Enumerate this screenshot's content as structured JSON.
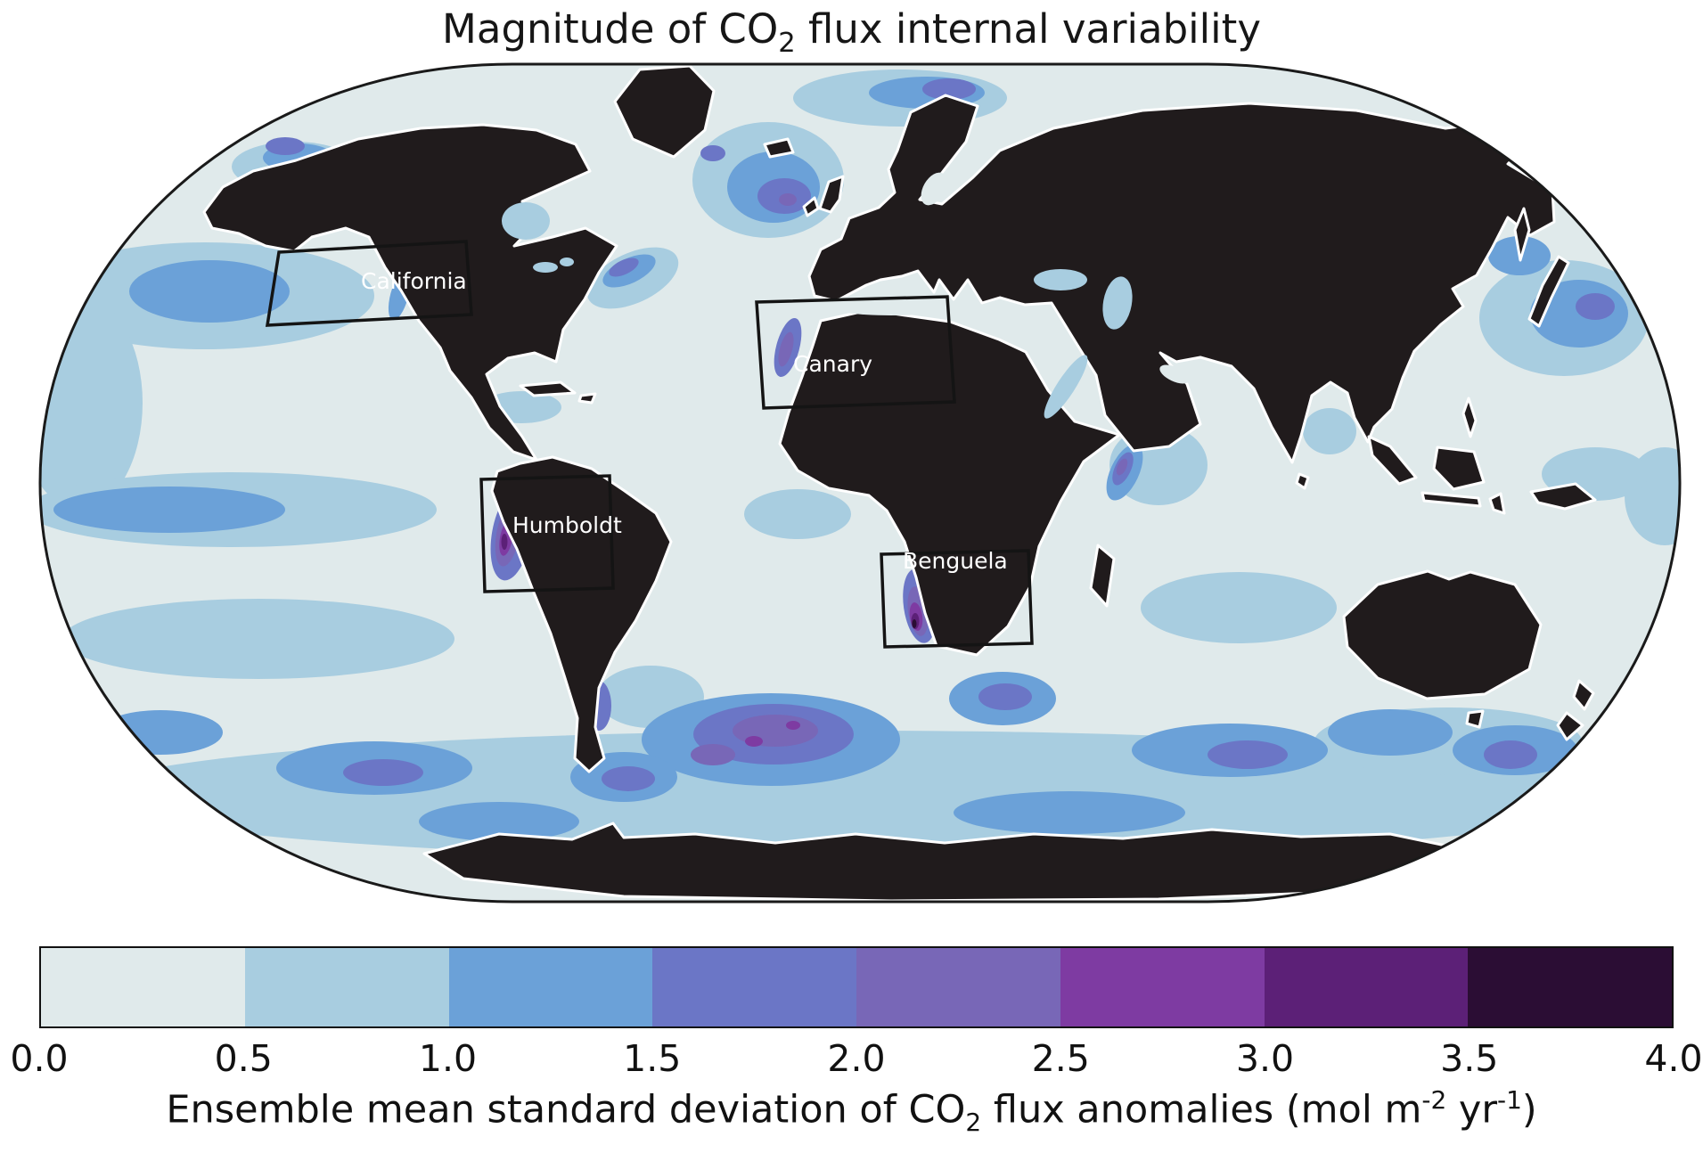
{
  "title": {
    "p1": "Magnitude of CO",
    "sub": "2",
    "p2": " flux internal variability"
  },
  "map": {
    "land_color": "#201b1c",
    "regions": [
      {
        "label": "California"
      },
      {
        "label": "Canary"
      },
      {
        "label": "Humboldt"
      },
      {
        "label": "Benguela"
      }
    ]
  },
  "colorbar": {
    "colors": [
      "#e0eaeb",
      "#a8cde0",
      "#6ba1d8",
      "#6b76c6",
      "#7867b7",
      "#7e3ba2",
      "#5c2077",
      "#2b0d34"
    ],
    "ticks": [
      "0.0",
      "0.5",
      "1.0",
      "1.5",
      "2.0",
      "2.5",
      "3.0",
      "3.5",
      "4.0"
    ],
    "label": {
      "p1": "Ensemble mean standard deviation of CO",
      "sub": "2",
      "p2": " flux anomalies (mol m",
      "sup1": "-2",
      "p3": " yr",
      "sup2": "-1",
      "p4": ")"
    }
  }
}
